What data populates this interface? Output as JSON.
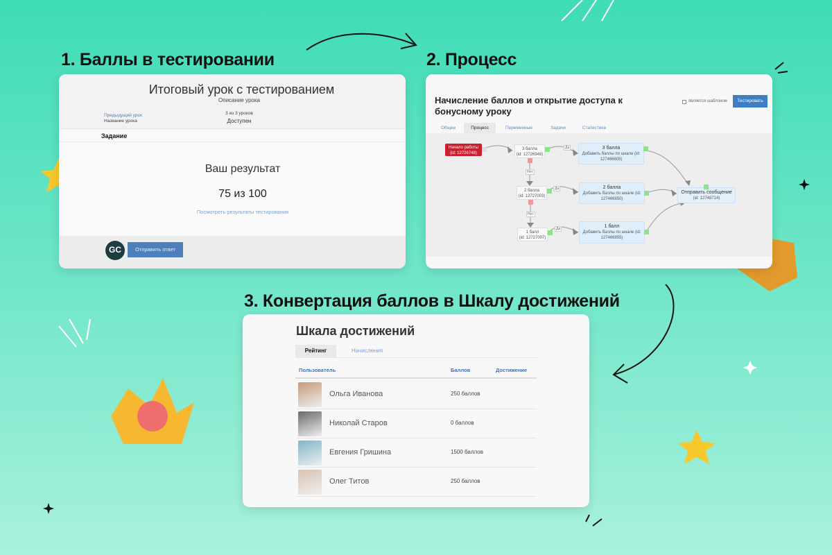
{
  "headings": {
    "step1": "1. Баллы в тестировании",
    "step2": "2. Процесс",
    "step3": "3. Конвертация баллов в Шкалу достижений"
  },
  "lesson": {
    "title": "Итоговый урок с тестированием",
    "description": "Описание урока",
    "prev_link": "Предыдущий урок",
    "prev_name": "Название урока",
    "counter": "3 из 3 уроков",
    "status": "Доступен",
    "task_label": "Задание",
    "result_title": "Ваш результат",
    "score": "75 из 100",
    "results_link": "Посмотреть результаты тестирования",
    "logo_text": "GC",
    "submit_label": "Отправить ответ"
  },
  "process": {
    "title": "Начисление баллов и открытие доступа к бонусному уроку",
    "template_checkbox": "является шаблоном",
    "template_checked": false,
    "test_button": "Тестировать",
    "tabs": [
      "Общее",
      "Процесс",
      "Переменные",
      "Задачи",
      "Статистика"
    ],
    "active_tab": "Процесс",
    "nodes": {
      "start": {
        "title": "Начало работы",
        "id": "(id: 12726748)"
      },
      "cond3": {
        "title": "3 балла",
        "id": "(id: 12726948)"
      },
      "cond2": {
        "title": "2 балла",
        "id": "(id: 12727003)"
      },
      "cond1": {
        "title": "1 балл",
        "id": "(id: 12727007)"
      },
      "act3": {
        "title": "3 балла",
        "desc": "Добавить баллы по шкале (id: 127466605)"
      },
      "act2": {
        "title": "2 балла",
        "desc": "Добавить баллы по шкале (id: 127466850)"
      },
      "act1": {
        "title": "1 балл",
        "desc": "Добавить баллы по шкале (id: 127466855)"
      },
      "msg": {
        "title": "Отправить сообщение",
        "id": "(id: 12748714)"
      }
    },
    "edge_yes": "Да",
    "edge_no": "Нет",
    "colors": {
      "start": "#c8202f",
      "action": "#dfeefb",
      "yes_port": "#8ee28a",
      "no_port": "#ee9a9a",
      "button": "#3f7fc1"
    }
  },
  "achievements": {
    "title": "Шкала достижений",
    "tabs": [
      "Рейтинг",
      "Начисления"
    ],
    "active_tab": "Рейтинг",
    "columns": [
      "Пользователь",
      "Баллов",
      "Достижение"
    ],
    "rows": [
      {
        "name": "Ольга Иванова",
        "points": "250 баллов"
      },
      {
        "name": "Николай Старов",
        "points": "0 баллов"
      },
      {
        "name": "Евгения Гришина",
        "points": "1500 баллов"
      },
      {
        "name": "Олег Титов",
        "points": "250 баллов"
      }
    ]
  }
}
